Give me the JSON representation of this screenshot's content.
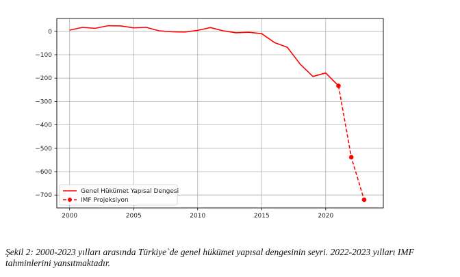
{
  "chart_data": {
    "type": "line",
    "title": "",
    "xlabel": "",
    "ylabel": "",
    "xlim": [
      1999,
      2024.5
    ],
    "ylim": [
      -755,
      55
    ],
    "xticks": [
      2000,
      2005,
      2010,
      2015,
      2020
    ],
    "yticks": [
      0,
      -100,
      -200,
      -300,
      -400,
      -500,
      -600,
      -700
    ],
    "grid": true,
    "legend_position": "lower-left",
    "series": [
      {
        "name": "Genel Hükümet Yapısal Dengesi",
        "color": "#ff0000",
        "style": "solid",
        "marker": "none",
        "x": [
          2000,
          2001,
          2002,
          2003,
          2004,
          2005,
          2006,
          2007,
          2008,
          2009,
          2010,
          2011,
          2012,
          2013,
          2014,
          2015,
          2016,
          2017,
          2018,
          2019,
          2020,
          2021
        ],
        "y": [
          5,
          17,
          13,
          24,
          23,
          15,
          17,
          2,
          -2,
          -3,
          4,
          16,
          2,
          -6,
          -4,
          -10,
          -48,
          -68,
          -140,
          -193,
          -178,
          -233
        ]
      },
      {
        "name": "IMF Projeksiyon",
        "color": "#ff0000",
        "style": "dashed",
        "marker": "circle",
        "x": [
          2021,
          2022,
          2023
        ],
        "y": [
          -233,
          -538,
          -720
        ]
      }
    ]
  },
  "caption": "Şekil 2: 2000-2023 yılları arasında Türkiye`de genel hükümet yapısal dengesinin seyri. 2022-2023 yılları IMF tahminlerini yansıtmaktadır."
}
